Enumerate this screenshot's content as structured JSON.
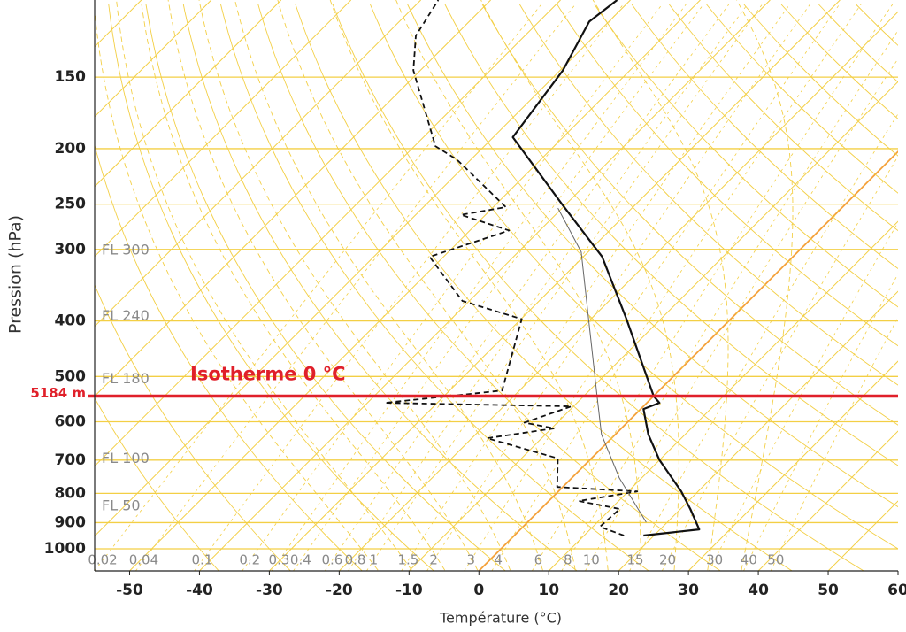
{
  "chart_data": {
    "type": "skewt",
    "xlabel": "Température (°C)",
    "ylabel": "Pression (hPa)",
    "xlim": [
      -55,
      60
    ],
    "xticks": [
      -50,
      -40,
      -30,
      -20,
      -10,
      0,
      10,
      20,
      30,
      40,
      50,
      60
    ],
    "ylim": [
      1093,
      110
    ],
    "yticks": [
      150,
      200,
      250,
      300,
      400,
      500,
      600,
      700,
      800,
      900,
      1000
    ],
    "log_scale_y": true,
    "grid_color": "#f3cf45",
    "isotherms": [
      -140,
      -130,
      -120,
      -110,
      -100,
      -90,
      -80,
      -70,
      -60,
      -50,
      -40,
      -30,
      -20,
      -10,
      0,
      10,
      20,
      30,
      40,
      50,
      60
    ],
    "highlight_isotherm": 0,
    "highlight_color": "#f4a13a",
    "dry_adiabats": [
      230,
      240,
      250,
      260,
      270,
      280,
      290,
      300,
      310,
      320,
      330,
      340,
      350,
      360,
      370,
      380,
      390,
      400,
      410,
      420,
      430,
      440,
      450,
      460
    ],
    "moist_adiabats": [
      -20,
      -15,
      -10,
      -5,
      0,
      5,
      10,
      15,
      20,
      25,
      30,
      35
    ],
    "mixing_ratios": [
      {
        "value": 0.02,
        "label": "0.02"
      },
      {
        "value": 0.04,
        "label": "0.04"
      },
      0.1,
      0.2,
      0.3,
      0.4,
      0.6,
      0.8,
      1,
      1.5,
      2,
      3,
      4,
      6,
      8,
      10,
      15,
      20,
      30,
      40,
      50
    ],
    "flight_levels": [
      {
        "label": "FL 300",
        "p": 301
      },
      {
        "label": "FL 240",
        "p": 393
      },
      {
        "label": "FL 180",
        "p": 506
      },
      {
        "label": "FL 100",
        "p": 697
      },
      {
        "label": "FL 50",
        "p": 843
      }
    ],
    "freezing_level": {
      "p": 541,
      "label": "5184 m",
      "text": "Isotherme 0 °C",
      "color": "#e0202a"
    },
    "series": [
      {
        "color": "#111111",
        "style": "solid",
        "width": 2.2,
        "pressure": [
          948,
          925,
          852,
          794,
          700,
          631,
          570,
          556,
          541,
          397,
          309,
          250,
          191,
          146,
          120,
          110
        ],
        "values": [
          18.5,
          25.6,
          21.4,
          17.6,
          10,
          4.7,
          0.4,
          1.8,
          0,
          -14.9,
          -27.3,
          -40.6,
          -57.2,
          -59.6,
          -62.8,
          -61.9
        ]
      },
      {
        "color": "#111111",
        "style": "dashed",
        "width": 1.8,
        "pressure": [
          948,
          915,
          852,
          825,
          794,
          780,
          695,
          641,
          616,
          602,
          564,
          556,
          529,
          397,
          369,
          309,
          278,
          261,
          253,
          209,
          198,
          146,
          127,
          110
        ],
        "values": [
          15.7,
          11,
          11.3,
          4.3,
          11.3,
          -0.8,
          -4.8,
          -17.8,
          -9.6,
          -14.7,
          -10.3,
          -37.5,
          -22.5,
          -29.9,
          -41,
          -52,
          -44.4,
          -53.5,
          -48.2,
          -62,
          -67,
          -81,
          -85.6,
          -87.5
        ]
      },
      {
        "color": "#666666",
        "style": "solid",
        "width": 1,
        "pressure": [
          899,
          752,
          631,
          537,
          303,
          254
        ],
        "values": [
          17,
          6.8,
          -2,
          -8.4,
          -31,
          -40.6
        ]
      }
    ]
  }
}
